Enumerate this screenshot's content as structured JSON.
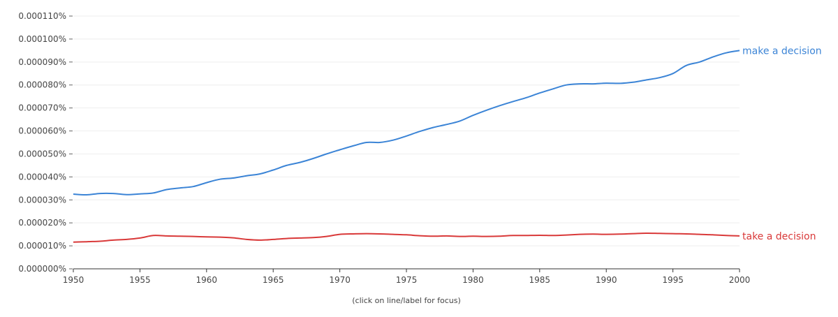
{
  "chart_data": {
    "type": "line",
    "title": "",
    "xlabel": "",
    "ylabel": "",
    "xlim": [
      1950,
      2000
    ],
    "ylim": [
      0,
      0.00011
    ],
    "grid": true,
    "x_ticks": [
      "1950",
      "1955",
      "1960",
      "1965",
      "1970",
      "1975",
      "1980",
      "1985",
      "1990",
      "1995",
      "2000"
    ],
    "y_ticks": [
      "0.000000%",
      "0.000010%",
      "0.000020%",
      "0.000030%",
      "0.000040%",
      "0.000050%",
      "0.000060%",
      "0.000070%",
      "0.000080%",
      "0.000090%",
      "0.000100%",
      "0.000110%"
    ],
    "x": [
      1950,
      1951,
      1952,
      1953,
      1954,
      1955,
      1956,
      1957,
      1958,
      1959,
      1960,
      1961,
      1962,
      1963,
      1964,
      1965,
      1966,
      1967,
      1968,
      1969,
      1970,
      1971,
      1972,
      1973,
      1974,
      1975,
      1976,
      1977,
      1978,
      1979,
      1980,
      1981,
      1982,
      1983,
      1984,
      1985,
      1986,
      1987,
      1988,
      1989,
      1990,
      1991,
      1992,
      1993,
      1994,
      1995,
      1996,
      1997,
      1998,
      1999,
      2000
    ],
    "series": [
      {
        "name": "make a decision",
        "color": "#3b84d6",
        "values": [
          3.25e-05,
          3.22e-05,
          3.28e-05,
          3.28e-05,
          3.23e-05,
          3.26e-05,
          3.3e-05,
          3.45e-05,
          3.52e-05,
          3.58e-05,
          3.75e-05,
          3.9e-05,
          3.95e-05,
          4.05e-05,
          4.13e-05,
          4.3e-05,
          4.5e-05,
          4.63e-05,
          4.8e-05,
          5e-05,
          5.18e-05,
          5.35e-05,
          5.5e-05,
          5.5e-05,
          5.6e-05,
          5.78e-05,
          5.98e-05,
          6.15e-05,
          6.28e-05,
          6.43e-05,
          6.68e-05,
          6.9e-05,
          7.1e-05,
          7.28e-05,
          7.45e-05,
          7.65e-05,
          7.83e-05,
          8e-05,
          8.05e-05,
          8.05e-05,
          8.08e-05,
          8.07e-05,
          8.12e-05,
          8.22e-05,
          8.32e-05,
          8.5e-05,
          8.85e-05,
          9e-05,
          9.22e-05,
          9.4e-05,
          9.5e-05
        ]
      },
      {
        "name": "take a decision",
        "color": "#d93939",
        "values": [
          1.16e-05,
          1.18e-05,
          1.2e-05,
          1.25e-05,
          1.28e-05,
          1.34e-05,
          1.45e-05,
          1.43e-05,
          1.42e-05,
          1.41e-05,
          1.39e-05,
          1.38e-05,
          1.35e-05,
          1.28e-05,
          1.25e-05,
          1.28e-05,
          1.32e-05,
          1.34e-05,
          1.36e-05,
          1.41e-05,
          1.5e-05,
          1.52e-05,
          1.53e-05,
          1.52e-05,
          1.5e-05,
          1.48e-05,
          1.44e-05,
          1.42e-05,
          1.43e-05,
          1.41e-05,
          1.42e-05,
          1.41e-05,
          1.42e-05,
          1.45e-05,
          1.45e-05,
          1.46e-05,
          1.45e-05,
          1.47e-05,
          1.5e-05,
          1.51e-05,
          1.5e-05,
          1.51e-05,
          1.53e-05,
          1.55e-05,
          1.54e-05,
          1.53e-05,
          1.52e-05,
          1.5e-05,
          1.48e-05,
          1.45e-05,
          1.43e-05
        ]
      }
    ]
  },
  "footer_hint": "(click on line/label for focus)"
}
